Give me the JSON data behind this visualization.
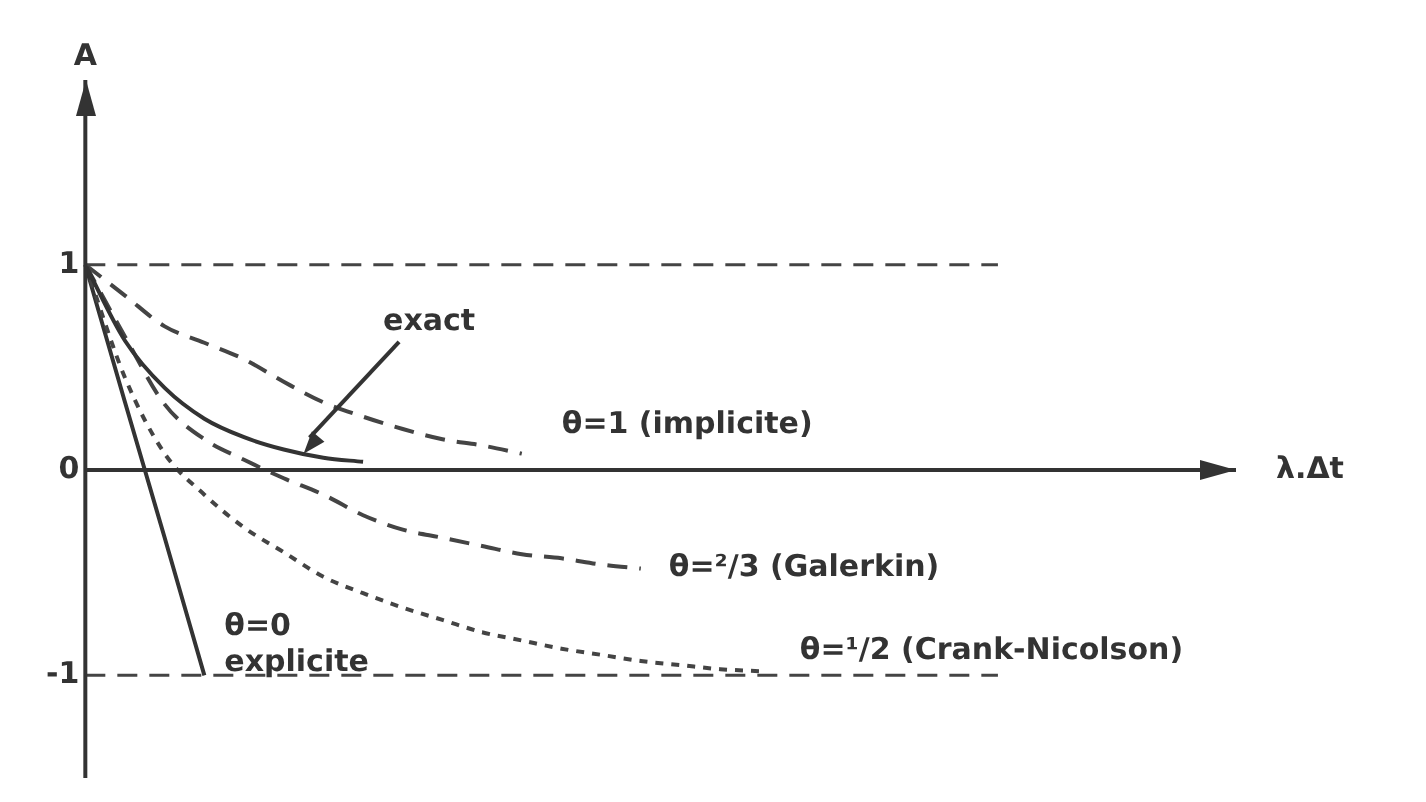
{
  "chart_data": {
    "type": "line",
    "xlabel": "λ.Δt",
    "ylabel": "A",
    "categories": [
      null,
      null,
      null,
      null,
      null,
      null,
      null,
      null,
      null,
      null,
      null,
      null,
      null,
      null,
      null,
      null,
      null,
      null,
      null,
      null,
      null,
      null,
      null,
      null,
      null,
      null,
      null,
      null,
      null,
      null
    ],
    "ylim": [
      -1.5,
      1.9
    ],
    "yticks": [
      -1,
      0,
      1
    ],
    "tick_labels": "y",
    "grid": false,
    "legend": false,
    "marker": "none",
    "series": [
      {
        "name": "exact",
        "color": "#333333",
        "line_style": "solid",
        "values": [
          1,
          0.63,
          0.4,
          0.25,
          0.16,
          0.1,
          0.06,
          0.04,
          null,
          null,
          null,
          null,
          null,
          null,
          null,
          null,
          null,
          null,
          null,
          null,
          null,
          null,
          null,
          null,
          null,
          null,
          null,
          null,
          null,
          null
        ]
      },
      {
        "name": "θ=1 (implicite)",
        "color": "#444444",
        "line_style": "dashed",
        "values": [
          1,
          0.85,
          0.7,
          0.62,
          0.54,
          0.43,
          0.33,
          0.26,
          0.2,
          0.15,
          0.12,
          0.08,
          null,
          null,
          null,
          null,
          null,
          null,
          null,
          null,
          null,
          null,
          null,
          null,
          null,
          null,
          null,
          null,
          null,
          null
        ]
      },
      {
        "name": "θ=²/3 (Galerkin)",
        "color": "#444444",
        "line_style": "dashed",
        "values": [
          1,
          0.65,
          0.32,
          0.15,
          0.05,
          -0.04,
          -0.12,
          -0.22,
          -0.29,
          -0.33,
          -0.37,
          -0.41,
          -0.43,
          -0.46,
          -0.48,
          null,
          null,
          null,
          null,
          null,
          null,
          null,
          null,
          null,
          null,
          null,
          null,
          null,
          null,
          null
        ]
      },
      {
        "name": "θ=¹/2 (Crank-Nicolson)",
        "color": "#444444",
        "line_style": "dotted",
        "values": [
          1,
          0.45,
          0.08,
          -0.12,
          -0.28,
          -0.4,
          -0.52,
          -0.6,
          -0.67,
          -0.73,
          -0.79,
          -0.83,
          -0.87,
          -0.9,
          -0.93,
          -0.95,
          -0.97,
          -0.98,
          null,
          null,
          null,
          null,
          null,
          null,
          null,
          null,
          null,
          null,
          null,
          null
        ]
      },
      {
        "name": "θ=0 explicite",
        "color": "#333333",
        "line_style": "solid",
        "values": [
          1,
          0.33,
          -0.33,
          -1,
          null,
          null,
          null,
          null,
          null,
          null,
          null,
          null,
          null,
          null,
          null,
          null,
          null,
          null,
          null,
          null,
          null,
          null,
          null,
          null,
          null,
          null,
          null,
          null,
          null,
          null
        ]
      }
    ],
    "ref_lines": [
      {
        "axis": "y",
        "value": 1,
        "line_style": "dashed",
        "color": "#444444"
      },
      {
        "axis": "y",
        "value": -1,
        "line_style": "dashed",
        "color": "#444444"
      }
    ]
  }
}
